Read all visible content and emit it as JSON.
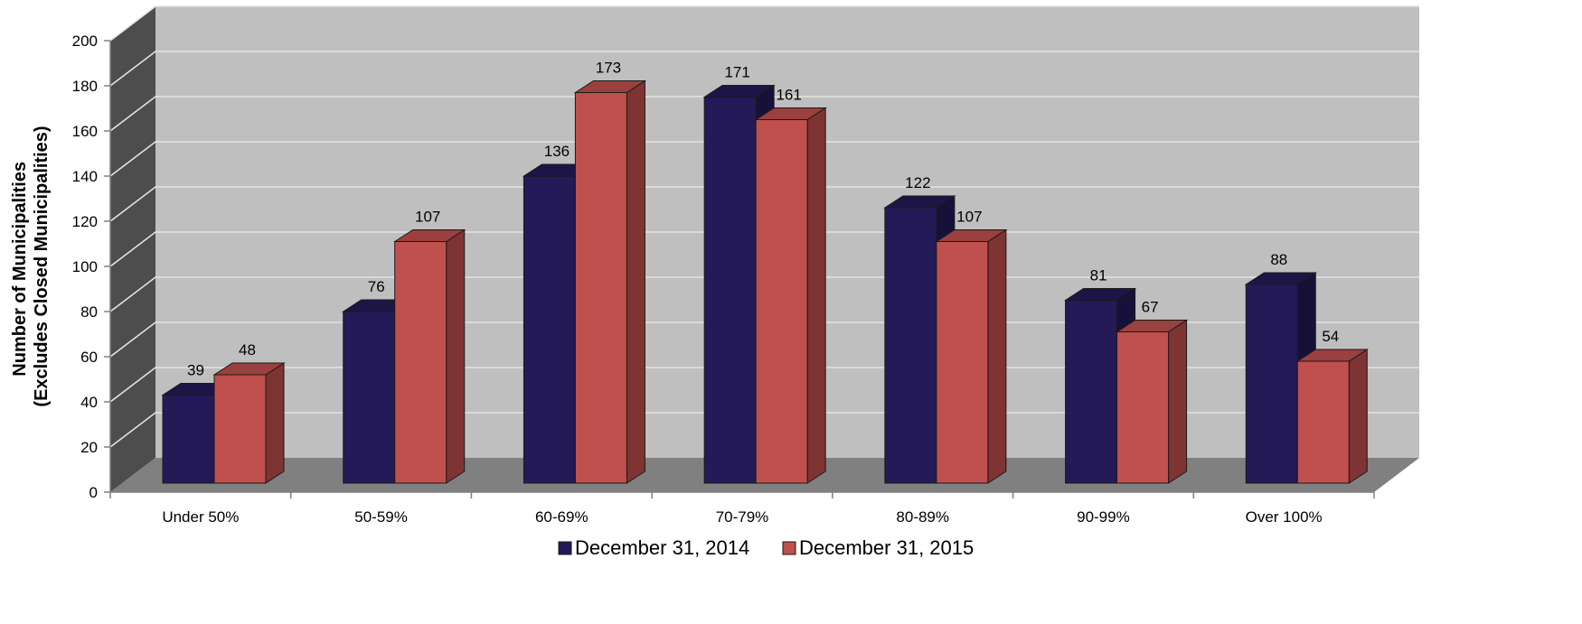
{
  "chart_data": {
    "type": "bar",
    "three_d": true,
    "categories": [
      "Under 50%",
      "50-59%",
      "60-69%",
      "70-79%",
      "80-89%",
      "90-99%",
      "Over 100%"
    ],
    "series": [
      {
        "name": "December 31, 2014",
        "values": [
          39,
          76,
          136,
          171,
          122,
          81,
          88
        ],
        "color": "#231a57"
      },
      {
        "name": "December 31, 2015",
        "values": [
          48,
          107,
          173,
          161,
          107,
          67,
          54
        ],
        "color": "#c0504d"
      }
    ],
    "ylabel_lines": [
      "Number of Municipalities",
      "(Excludes Closed Municipalities)"
    ],
    "ylim": [
      0,
      200
    ],
    "yticks": [
      0,
      20,
      40,
      60,
      80,
      100,
      120,
      140,
      160,
      180,
      200
    ],
    "grid": true,
    "legend_position": "bottom",
    "wall_color": "#bfbfbf",
    "side_wall_color": "#4d4d4d",
    "floor_color": "#808080"
  }
}
